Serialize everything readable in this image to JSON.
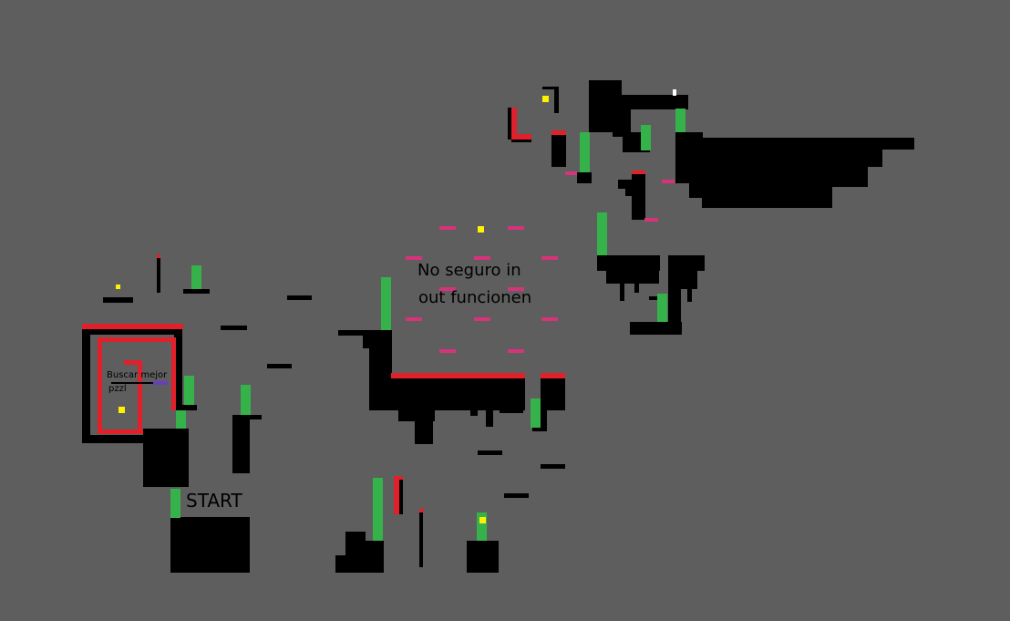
{
  "level": {
    "start_label": "START",
    "note_main": [
      "No seguro in",
      "out funcionen"
    ],
    "note_puzzle": [
      "Buscar mejor",
      "pzzl"
    ]
  },
  "colors": {
    "background": "#5e5e5e",
    "solid": "#000000",
    "hazard": "#e0202a",
    "spring": "#35b34a",
    "collectible": "#fff200",
    "one_way": "#d8327a",
    "marker": "#6a3cc0",
    "exit": "#ffffff"
  }
}
